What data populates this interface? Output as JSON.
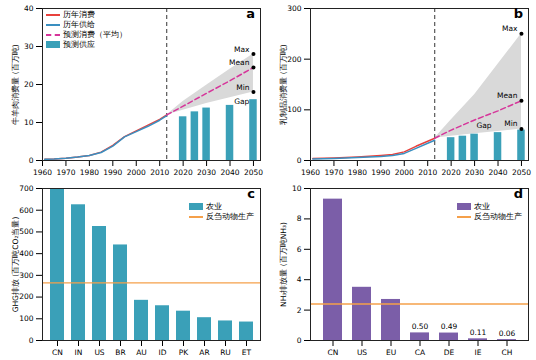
{
  "chart_data": [
    {
      "type": "line",
      "title": "a",
      "y_label": "牛羊肉消费量 (百万吨)",
      "xlim": [
        1960,
        2053
      ],
      "xticks": [
        1960,
        1970,
        1980,
        1990,
        2000,
        2010,
        2020,
        2030,
        2040,
        2050
      ],
      "ylim": [
        0,
        40
      ],
      "yticks": [
        0,
        10,
        20,
        30,
        40
      ],
      "forecast_start": 2013,
      "legend": "top-left",
      "series": [
        {
          "name": "历年消费",
          "type": "line",
          "color": "#e8413c",
          "x": [
            1961,
            1965,
            1970,
            1975,
            1980,
            1985,
            1990,
            1995,
            2000,
            2005,
            2010,
            2013
          ],
          "values": [
            0.3,
            0.4,
            0.6,
            0.9,
            1.3,
            2.2,
            4.0,
            6.3,
            7.8,
            9.3,
            10.8,
            12.0
          ]
        },
        {
          "name": "历年供给",
          "type": "line",
          "color": "#3a8fc0",
          "x": [
            1961,
            1965,
            1970,
            1975,
            1980,
            1985,
            1990,
            1995,
            2000,
            2005,
            2010,
            2013
          ],
          "values": [
            0.3,
            0.4,
            0.6,
            0.9,
            1.3,
            2.1,
            3.8,
            6.2,
            7.6,
            9.0,
            10.6,
            11.8
          ]
        },
        {
          "name": "预测消费（平均）",
          "type": "line",
          "line_style": "dashed",
          "color": "#d6359a",
          "x": [
            2013,
            2020,
            2030,
            2040,
            2050
          ],
          "values": [
            12.0,
            14.3,
            17.7,
            21.0,
            24.5
          ]
        },
        {
          "name": "预测供应",
          "type": "bar",
          "color": "#3aa0b8",
          "x": [
            2020,
            2025,
            2030,
            2040,
            2050
          ],
          "values": [
            11.5,
            12.8,
            13.8,
            14.5,
            16.0
          ]
        }
      ],
      "range": {
        "color": "#d9d9d9",
        "x": [
          2013,
          2020,
          2030,
          2040,
          2050
        ],
        "max": [
          12.0,
          15.5,
          19.8,
          24.0,
          28.0
        ],
        "min": [
          12.0,
          13.2,
          15.0,
          16.5,
          18.0
        ]
      },
      "annotations": [
        {
          "text": "Max",
          "x": 2050,
          "y": 28,
          "marker": "dot"
        },
        {
          "text": "Mean",
          "x": 2050,
          "y": 24.5,
          "marker": "dot"
        },
        {
          "text": "Min",
          "x": 2050,
          "y": 18,
          "marker": "dot"
        },
        {
          "text": "Gap",
          "x": 2045,
          "y": 15.5
        }
      ]
    },
    {
      "type": "line",
      "title": "b",
      "y_label": "乳制品消费量 (百万吨)",
      "xlim": [
        1960,
        2053
      ],
      "xticks": [
        1960,
        1970,
        1980,
        1990,
        2000,
        2010,
        2020,
        2030,
        2040,
        2050
      ],
      "ylim": [
        0,
        300
      ],
      "yticks": [
        0,
        100,
        200,
        300
      ],
      "forecast_start": 2013,
      "series": [
        {
          "name": "历年消费",
          "type": "line",
          "color": "#e8413c",
          "x": [
            1961,
            1970,
            1980,
            1990,
            1995,
            2000,
            2005,
            2010,
            2013
          ],
          "values": [
            4,
            5,
            7,
            10,
            12,
            17,
            28,
            38,
            44
          ]
        },
        {
          "name": "历年供给",
          "type": "line",
          "color": "#3a8fc0",
          "x": [
            1961,
            1970,
            1980,
            1990,
            1995,
            2000,
            2005,
            2010,
            2013
          ],
          "values": [
            3,
            4,
            6,
            8,
            10,
            14,
            24,
            34,
            40
          ]
        },
        {
          "name": "预测消费（平均）",
          "type": "line",
          "line_style": "dashed",
          "color": "#d6359a",
          "x": [
            2013,
            2020,
            2030,
            2040,
            2050
          ],
          "values": [
            44,
            60,
            80,
            98,
            118
          ]
        },
        {
          "name": "预测供应",
          "type": "bar",
          "color": "#3aa0b8",
          "x": [
            2020,
            2025,
            2030,
            2040,
            2050
          ],
          "values": [
            45,
            48,
            52,
            55,
            60
          ]
        }
      ],
      "range": {
        "color": "#d9d9d9",
        "x": [
          2013,
          2020,
          2030,
          2040,
          2050
        ],
        "max": [
          44,
          80,
          130,
          190,
          250
        ],
        "min": [
          44,
          48,
          53,
          57,
          62
        ]
      },
      "annotations": [
        {
          "text": "Max",
          "x": 2050,
          "y": 250,
          "marker": "dot"
        },
        {
          "text": "Mean",
          "x": 2050,
          "y": 118,
          "marker": "dot"
        },
        {
          "text": "Min",
          "x": 2050,
          "y": 62,
          "marker": "dot"
        },
        {
          "text": "Gap",
          "x": 2034,
          "y": 68
        }
      ]
    },
    {
      "type": "bar",
      "title": "c",
      "y_label": "GHG排放 (百万吨CO₂当量)",
      "categories": [
        "CN",
        "IN",
        "US",
        "BR",
        "AU",
        "ID",
        "PK",
        "AR",
        "RU",
        "ET"
      ],
      "ylim": [
        0,
        700
      ],
      "yticks": [
        0,
        100,
        200,
        300,
        400,
        500,
        600,
        700
      ],
      "legend": "top-right",
      "series": [
        {
          "name": "农业",
          "color": "#3aa0b8",
          "values": [
            700,
            625,
            525,
            440,
            185,
            160,
            135,
            105,
            90,
            85
          ]
        }
      ],
      "reference_line": {
        "name": "反刍动物生产",
        "value": 265,
        "color": "#f5a04a"
      }
    },
    {
      "type": "bar",
      "title": "d",
      "y_label": "NH₃排放量 (百万吨NH₃)",
      "categories": [
        "CN",
        "US",
        "EU",
        "CA",
        "DE",
        "IE",
        "CH"
      ],
      "ylim": [
        0,
        10
      ],
      "yticks": [
        0,
        2,
        4,
        6,
        8,
        10
      ],
      "legend": "top-right",
      "data_labels": true,
      "series": [
        {
          "name": "农业",
          "color": "#7b5ea8",
          "values": [
            9.3,
            3.5,
            2.7,
            0.5,
            0.49,
            0.11,
            0.06
          ],
          "value_labels": [
            null,
            null,
            null,
            "0.50",
            "0.49",
            "0.11",
            "0.06"
          ]
        }
      ],
      "reference_line": {
        "name": "反刍动物生产",
        "value": 2.4,
        "color": "#f5a04a"
      }
    }
  ]
}
